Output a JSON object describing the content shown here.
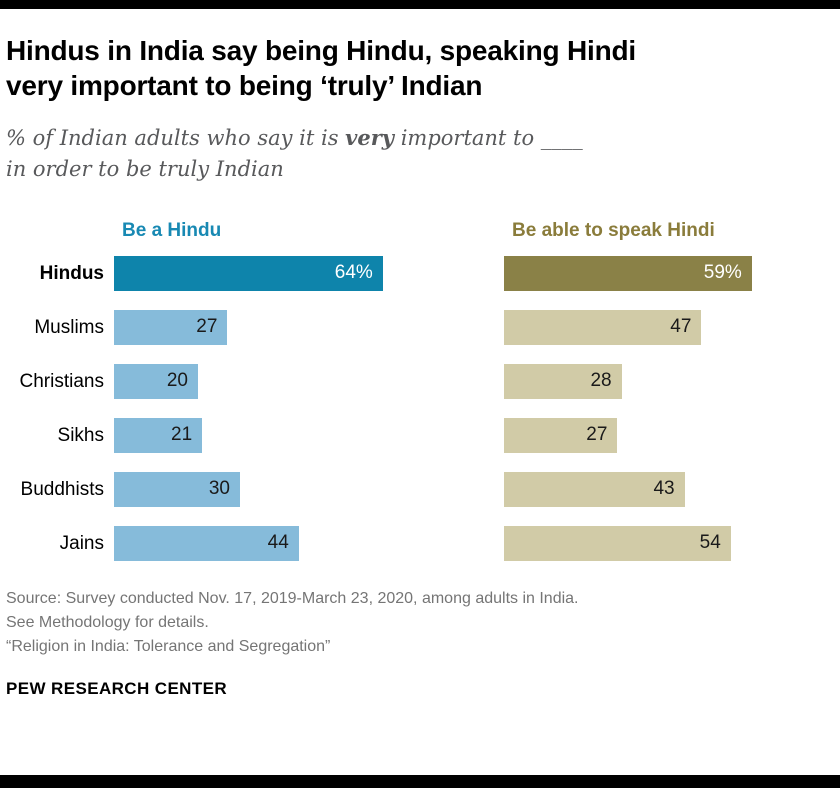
{
  "header": {
    "title_line1": "Hindus in India say being Hindu, speaking Hindi",
    "title_line2": "very important to being ‘truly’ Indian"
  },
  "subtitle": {
    "line1_prefix": "% of Indian adults who say it is ",
    "line1_bold": "very",
    "line1_suffix": " important to ____",
    "line2": "in order to be truly Indian"
  },
  "chart_data": {
    "type": "bar",
    "orientation": "horizontal",
    "categories": [
      "Hindus",
      "Muslims",
      "Christians",
      "Sikhs",
      "Buddhists",
      "Jains"
    ],
    "series": [
      {
        "name": "Be a Hindu",
        "values": [
          64,
          27,
          20,
          21,
          30,
          44
        ],
        "value_labels": [
          "64%",
          "27",
          "20",
          "21",
          "30",
          "44"
        ]
      },
      {
        "name": "Be able to speak Hindi",
        "values": [
          59,
          47,
          28,
          27,
          43,
          54
        ],
        "value_labels": [
          "59%",
          "47",
          "28",
          "27",
          "43",
          "54"
        ]
      }
    ],
    "xlim": [
      0,
      100
    ],
    "grid": false,
    "legend_position": "column-headers",
    "colors": {
      "left_dark": "#0e84ab",
      "left_light": "#86bbda",
      "right_dark": "#8a8147",
      "right_light": "#d1cba7",
      "left_header": "#1889b3",
      "right_header": "#8a7c3b",
      "dark_bar_text": "#ffffff",
      "light_bar_text": "#1a1a1a"
    }
  },
  "source": {
    "line1": "Source: Survey conducted Nov. 17, 2019-March 23, 2020, among adults in India.",
    "line2": "See Methodology for details.",
    "line3": "“Religion in India: Tolerance and Segregation”"
  },
  "footer": {
    "brand": "PEW RESEARCH CENTER"
  }
}
